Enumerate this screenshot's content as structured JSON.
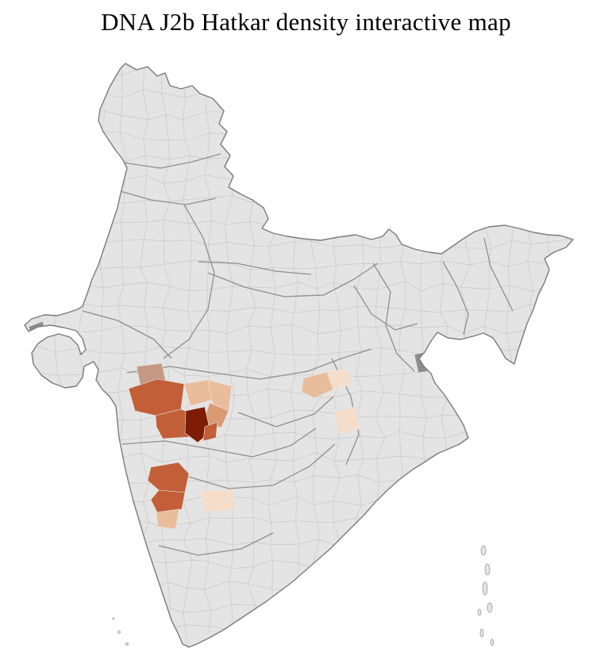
{
  "title": "DNA J2b Hatkar density interactive map",
  "map": {
    "background": "#ffffff",
    "base_fill": "#e4e4e4",
    "district_border": "#c9c9c9",
    "state_border": "#8f8f8f",
    "outline": "#7b7b7b",
    "island_stroke": "#9a9a9a",
    "density_scale": {
      "pale": "#f5ddcb",
      "light": "#e9bd9c",
      "medium": "#d99a74",
      "tan": "#c49a85",
      "dark": "#c25f38",
      "darkest": "#7c1d04",
      "gray": "#8d8d8d"
    },
    "highlighted_districts": [
      {
        "id": "mh-nw",
        "level": "tan"
      },
      {
        "id": "mh-w1",
        "level": "dark"
      },
      {
        "id": "mh-w2",
        "level": "dark"
      },
      {
        "id": "mh-c1",
        "level": "light"
      },
      {
        "id": "mh-c2",
        "level": "light"
      },
      {
        "id": "mh-c3",
        "level": "medium"
      },
      {
        "id": "mh-dark",
        "level": "darkest"
      },
      {
        "id": "mh-e",
        "level": "dark"
      },
      {
        "id": "ka-1",
        "level": "dark"
      },
      {
        "id": "ka-2",
        "level": "dark"
      },
      {
        "id": "ka-3",
        "level": "light"
      },
      {
        "id": "ka-se",
        "level": "pale"
      },
      {
        "id": "cg-1",
        "level": "light"
      },
      {
        "id": "cg-2",
        "level": "pale"
      },
      {
        "id": "od-1",
        "level": "pale"
      },
      {
        "id": "wb-urban",
        "level": "gray"
      },
      {
        "id": "kutch-w",
        "level": "gray"
      }
    ]
  }
}
